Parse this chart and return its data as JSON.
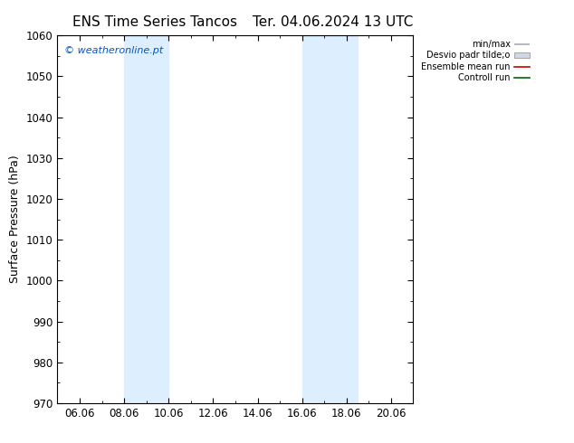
{
  "title_left": "ENS Time Series Tancos",
  "title_right": "Ter. 04.06.2024 13 UTC",
  "ylabel": "Surface Pressure (hPa)",
  "ylim": [
    970,
    1060
  ],
  "yticks": [
    970,
    980,
    990,
    1000,
    1010,
    1020,
    1030,
    1040,
    1050,
    1060
  ],
  "xlim": [
    0,
    16
  ],
  "xtick_labels": [
    "06.06",
    "08.06",
    "10.06",
    "12.06",
    "14.06",
    "16.06",
    "18.06",
    "20.06"
  ],
  "xtick_positions": [
    1,
    3,
    5,
    7,
    9,
    11,
    13,
    15
  ],
  "shaded_bands": [
    {
      "x_start": 3.0,
      "x_end": 5.0
    },
    {
      "x_start": 11.0,
      "x_end": 13.5
    }
  ],
  "band_color": "#ddeeff",
  "background_color": "#ffffff",
  "watermark": "© weatheronline.pt",
  "watermark_color": "#0055cc",
  "legend_labels": [
    "min/max",
    "Desvio padr tilde;o",
    "Ensemble mean run",
    "Controll run"
  ],
  "legend_colors": [
    "#aaaaaa",
    "#cccccc",
    "#cc0000",
    "#006600"
  ],
  "border_color": "#000000",
  "tick_color": "#000000",
  "font_size": 8.5,
  "title_font_size": 11,
  "ylabel_font_size": 9
}
